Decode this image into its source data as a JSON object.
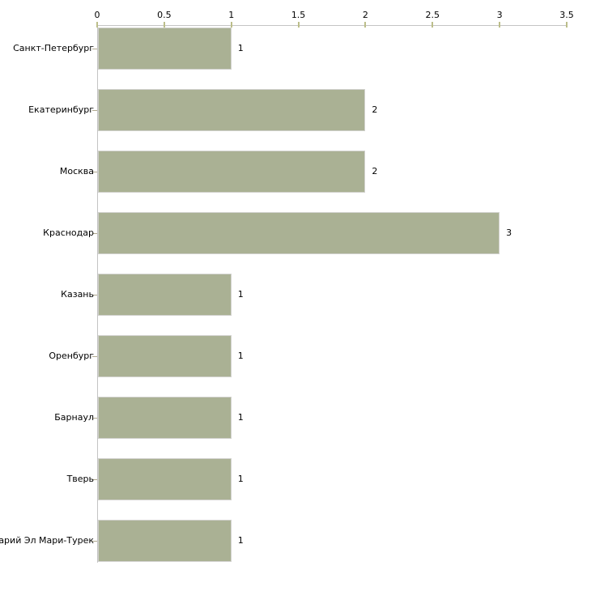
{
  "chart_data": {
    "type": "bar",
    "orientation": "horizontal",
    "title": "",
    "xlabel": "",
    "ylabel": "",
    "categories": [
      "Санкт-Петербург",
      "Екатеринбург",
      "Москва",
      "Краснодар",
      "Казань",
      "Оренбург",
      "Барнаул",
      "Тверь",
      "Марий Эл Мари-Турек"
    ],
    "values": [
      1,
      2,
      2,
      3,
      1,
      1,
      1,
      1,
      1
    ],
    "value_labels": [
      "1",
      "2",
      "2",
      "3",
      "1",
      "1",
      "1",
      "1",
      "1"
    ],
    "x_ticks": [
      0,
      0.5,
      1,
      1.5,
      2,
      2.5,
      3,
      3.5
    ],
    "x_tick_labels": [
      "0",
      "0.5",
      "1",
      "1.5",
      "2",
      "2.5",
      "3",
      "3.5"
    ],
    "xlim": [
      0,
      3.5
    ],
    "grid": false,
    "legend": false,
    "axis_position": "top",
    "colors": {
      "bar_fill": "#aab194",
      "bar_border": "#d0d0cc",
      "axis_line": "#c4c4c4",
      "tick_mark": "#bcbe8a",
      "y_tick_mark": "#b0a98f",
      "label_text": "#000000",
      "background": "#ffffff"
    }
  }
}
